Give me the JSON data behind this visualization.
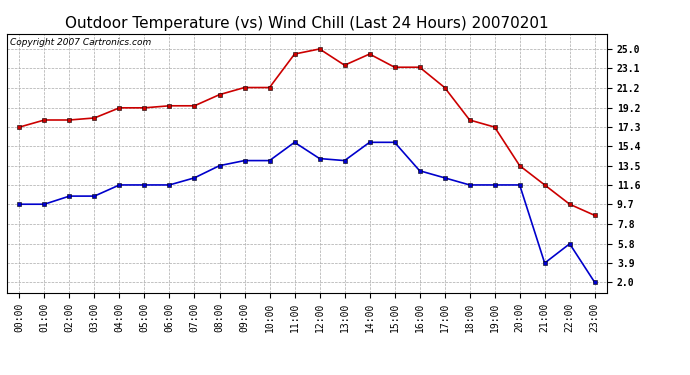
{
  "title": "Outdoor Temperature (vs) Wind Chill (Last 24 Hours) 20070201",
  "copyright_text": "Copyright 2007 Cartronics.com",
  "hours": [
    "00:00",
    "01:00",
    "02:00",
    "03:00",
    "04:00",
    "05:00",
    "06:00",
    "07:00",
    "08:00",
    "09:00",
    "10:00",
    "11:00",
    "12:00",
    "13:00",
    "14:00",
    "15:00",
    "16:00",
    "17:00",
    "18:00",
    "19:00",
    "20:00",
    "21:00",
    "22:00",
    "23:00"
  ],
  "temp": [
    17.3,
    18.0,
    18.0,
    18.2,
    19.2,
    19.2,
    19.4,
    19.4,
    20.5,
    21.2,
    21.2,
    24.5,
    25.0,
    23.4,
    24.5,
    23.2,
    23.2,
    21.2,
    18.0,
    17.3,
    13.5,
    11.6,
    9.7,
    8.6
  ],
  "windchill": [
    9.7,
    9.7,
    10.5,
    10.5,
    11.6,
    11.6,
    11.6,
    12.3,
    13.5,
    14.0,
    14.0,
    15.8,
    14.2,
    14.0,
    15.8,
    15.8,
    13.0,
    12.3,
    11.6,
    11.6,
    11.6,
    3.9,
    5.8,
    2.0
  ],
  "temp_color": "#cc0000",
  "windchill_color": "#0000cc",
  "background_color": "#ffffff",
  "grid_color": "#aaaaaa",
  "yticks": [
    2.0,
    3.9,
    5.8,
    7.8,
    9.7,
    11.6,
    13.5,
    15.4,
    17.3,
    19.2,
    21.2,
    23.1,
    25.0
  ],
  "ylim": [
    1.0,
    26.5
  ],
  "title_fontsize": 11,
  "tick_fontsize": 7,
  "copyright_fontsize": 6.5,
  "marker": "s",
  "marker_size": 2.5,
  "line_width": 1.2
}
